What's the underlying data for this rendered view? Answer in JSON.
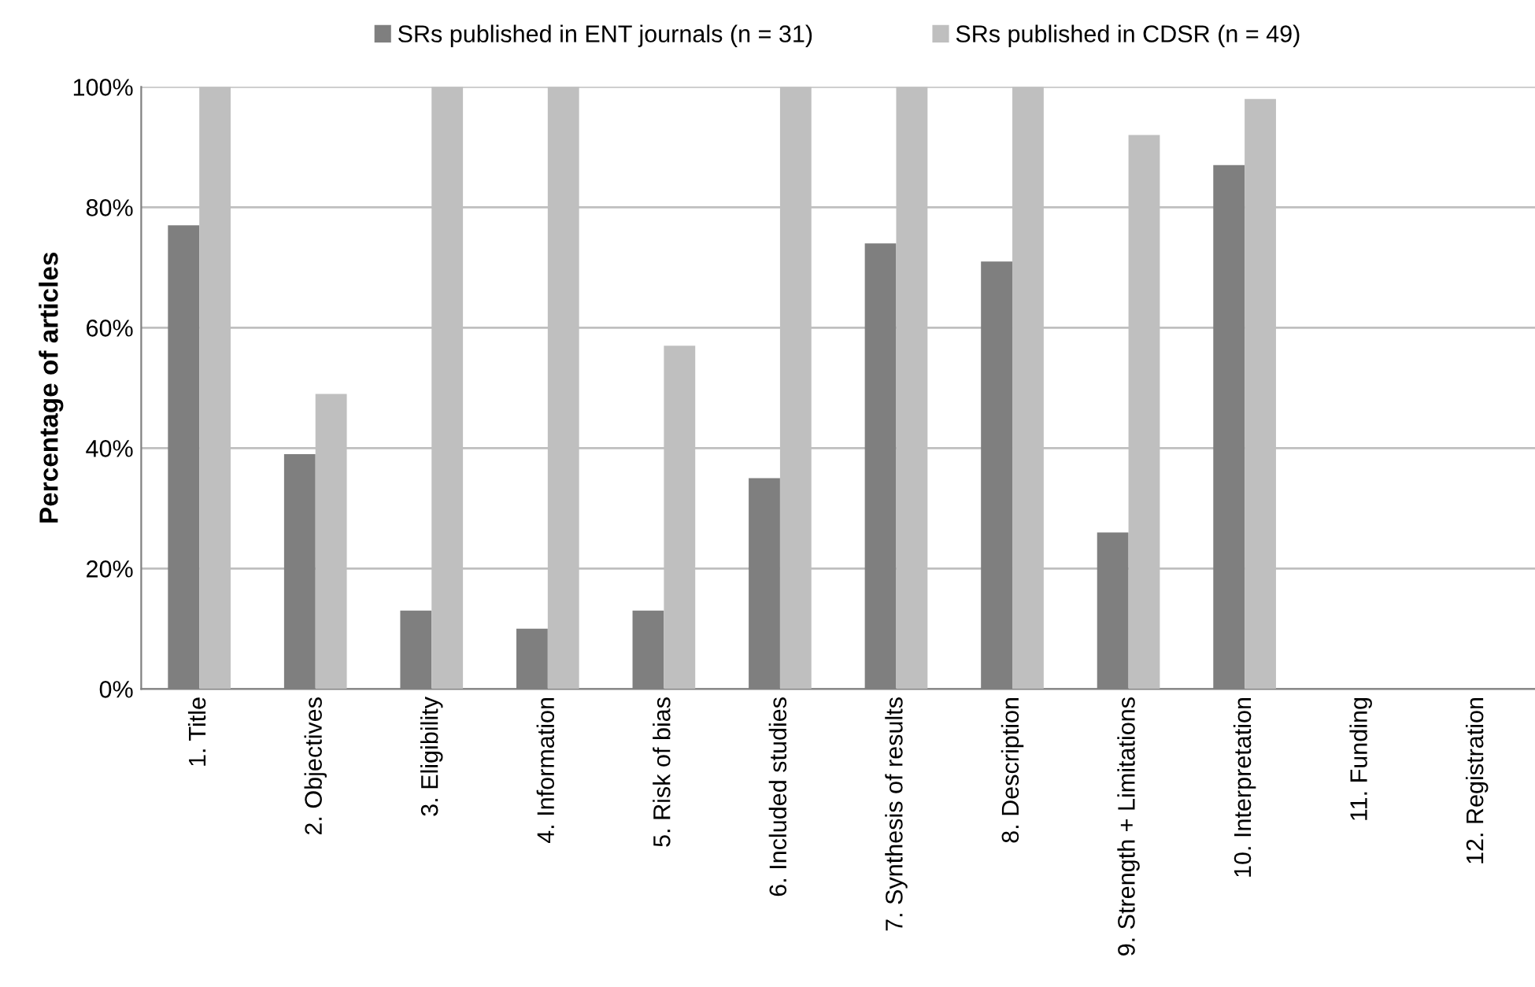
{
  "chart_data": {
    "type": "bar",
    "ylabel": "Percentage of articles",
    "categories": [
      "1. Title",
      "2. Objectives",
      "3. Eligibility",
      "4. Information",
      "5. Risk of bias",
      "6. Included studies",
      "7. Synthesis of results",
      "8. Description",
      "9. Strength + Limitations",
      "10. Interpretation",
      "11. Funding",
      "12. Registration"
    ],
    "series": [
      {
        "name": "SRs published in ENT journals (n = 31)",
        "color": "#7f7f7f",
        "values": [
          77,
          39,
          13,
          10,
          13,
          35,
          74,
          71,
          26,
          87,
          0,
          0
        ]
      },
      {
        "name": "SRs published in CDSR (n = 49)",
        "color": "#bfbfbf",
        "values": [
          100,
          49,
          100,
          100,
          57,
          100,
          100,
          100,
          92,
          98,
          0,
          0
        ]
      }
    ],
    "ylim": [
      0,
      100
    ],
    "yticks": [
      {
        "value": 0,
        "label": "0%"
      },
      {
        "value": 20,
        "label": "20%"
      },
      {
        "value": 40,
        "label": "40%"
      },
      {
        "value": 60,
        "label": "60%"
      },
      {
        "value": 80,
        "label": "80%"
      },
      {
        "value": 100,
        "label": "100%"
      }
    ],
    "grid": "y",
    "legend": "top"
  }
}
